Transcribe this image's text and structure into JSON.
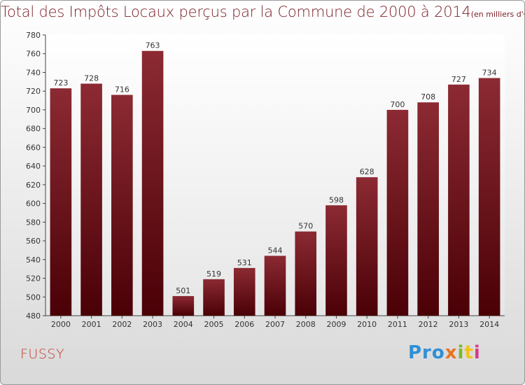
{
  "title": "Total des Impôts Locaux perçus par la Commune de 2000 à 2014",
  "title_unit": "(en milliers d'€)",
  "commune": "FUSSY",
  "logo": {
    "parts": [
      "Pro",
      "x",
      "i",
      "t",
      "i"
    ],
    "colors": [
      "#2f8fd6",
      "#e8731f",
      "#7bb82a",
      "#f2c318",
      "#d93a8c"
    ]
  },
  "colors": {
    "bar_top": "#8c2a33",
    "bar_bottom": "#4a0006",
    "title": "#7a1e24",
    "commune": "#c0392b"
  },
  "chart_data": {
    "type": "bar",
    "title": "Total des Impôts Locaux perçus par la Commune de 2000 à 2014",
    "xlabel": "",
    "ylabel": "en milliers d'€",
    "categories": [
      "2000",
      "2001",
      "2002",
      "2003",
      "2004",
      "2005",
      "2006",
      "2007",
      "2008",
      "2009",
      "2010",
      "2011",
      "2012",
      "2013",
      "2014"
    ],
    "values": [
      723,
      728,
      716,
      763,
      501,
      519,
      531,
      544,
      570,
      598,
      628,
      700,
      708,
      727,
      734
    ],
    "ylim": [
      480,
      780
    ],
    "yticks": [
      480,
      500,
      520,
      540,
      560,
      580,
      600,
      620,
      640,
      660,
      680,
      700,
      720,
      740,
      760,
      780
    ],
    "grid": false,
    "legend": "none"
  }
}
